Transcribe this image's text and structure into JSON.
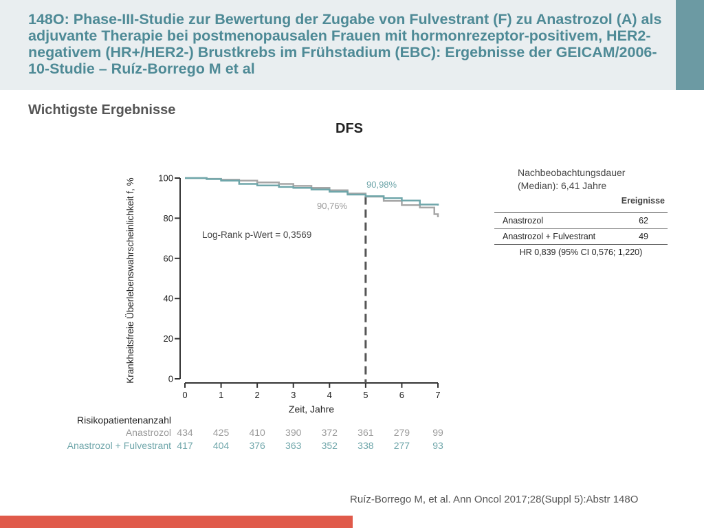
{
  "header": {
    "title": "148O: Phase-III-Studie zur Bewertung der Zugabe von Fulvestrant (F) zu Anastrozol (A) als adjuvante Therapie bei postmenopausalen Frauen mit hormonrezeptor-positivem, HER2-negativem (HR+/HER2-) Brustkrebs im Frühstadium (EBC): Ergebnisse der GEICAM/2006-10-Studie – Ruíz-Borrego M et al"
  },
  "section": {
    "subtitle": "Wichtigste Ergebnisse"
  },
  "colors": {
    "anastrozol": "#a6a6a6",
    "anastrozol_fulvestrant": "#6fa6aa",
    "title": "#4e8a96",
    "footer": "#e05a4a"
  },
  "chart_data": {
    "type": "line",
    "title": "DFS",
    "xlabel": "Zeit, Jahre",
    "ylabel": "Krankheitsfreie Überlebenswahrscheinlichkeit f, %",
    "xlim": [
      0,
      7
    ],
    "ylim": [
      0,
      100
    ],
    "xticks": [
      "0",
      "1",
      "2",
      "3",
      "4",
      "5",
      "6",
      "7"
    ],
    "yticks": [
      "0",
      "20",
      "40",
      "60",
      "80",
      "100"
    ],
    "series": [
      {
        "name": "Anastrozol",
        "x": [
          0,
          0.6,
          1.0,
          1.5,
          2.0,
          2.6,
          3.0,
          3.5,
          4.0,
          4.5,
          5.0,
          5.5,
          6.0,
          6.5,
          6.9,
          7.0
        ],
        "y": [
          100,
          99.6,
          99.2,
          98.7,
          97.8,
          97.1,
          96.1,
          95.1,
          93.9,
          92.3,
          90.76,
          88.6,
          86.5,
          85.3,
          82.0,
          80.5
        ]
      },
      {
        "name": "Anastrozol + Fulvestrant",
        "x": [
          0,
          0.6,
          1.0,
          1.5,
          2.0,
          2.6,
          3.0,
          3.5,
          4.0,
          4.5,
          5.0,
          5.5,
          6.0,
          6.5,
          7.0
        ],
        "y": [
          100,
          99.5,
          98.7,
          97.1,
          96.3,
          95.6,
          95.1,
          94.3,
          93.2,
          91.8,
          90.98,
          90.0,
          88.8,
          86.8,
          86.3
        ]
      }
    ],
    "annotations": {
      "logrank": "Log-Rank p-Wert = 0,3569",
      "label_af": "90,98%",
      "label_a": "90,76%",
      "dashed_line_x": 5
    },
    "risk_table": {
      "title": "Risikopatientenanzahl",
      "rows": [
        {
          "name": "Anastrozol",
          "values": [
            "434",
            "425",
            "410",
            "390",
            "372",
            "361",
            "279",
            "99"
          ]
        },
        {
          "name": "Anastrozol + Fulvestrant",
          "values": [
            "417",
            "404",
            "376",
            "363",
            "352",
            "338",
            "277",
            "93"
          ]
        }
      ]
    }
  },
  "followup": {
    "line1": "Nachbeobachtungsdauer",
    "line2": "(Median): 6,41 Jahre"
  },
  "events_table": {
    "header": "Ereignisse",
    "rows": [
      {
        "label": "Anastrozol",
        "value": "62"
      },
      {
        "label": "Anastrozol + Fulvestrant",
        "value": "49"
      }
    ],
    "hr": "HR 0,839 (95% CI 0,576; 1,220)"
  },
  "citation": "Ruíz-Borrego M, et al. Ann Oncol 2017;28(Suppl 5):Abstr 148O"
}
